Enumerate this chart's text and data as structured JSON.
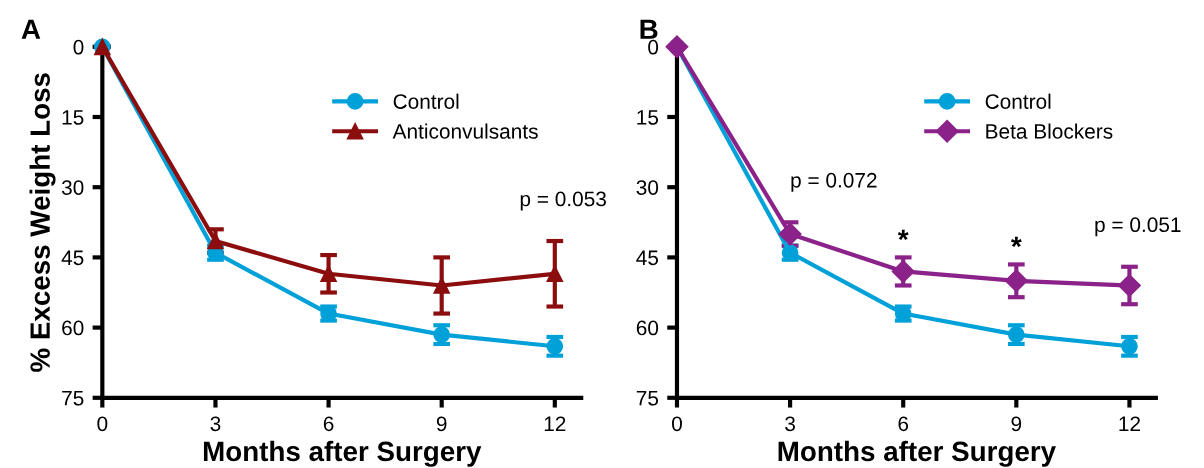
{
  "chart_data": [
    {
      "type": "line",
      "title": "A",
      "xlabel": "Months after Surgery",
      "ylabel": "% Excess Weight Loss",
      "x": [
        0,
        3,
        6,
        9,
        12
      ],
      "xlim": [
        0,
        12.7
      ],
      "xticks": [
        0,
        3,
        6,
        9,
        12
      ],
      "ylim": [
        75,
        0
      ],
      "yticks": [
        0,
        15,
        30,
        45,
        60,
        75
      ],
      "legend": "top right",
      "grid": false,
      "series": [
        {
          "name": "Control",
          "color": "#00a0d8",
          "marker": "circle",
          "values": [
            0,
            44,
            57,
            61.5,
            64
          ],
          "errors": [
            null,
            1.5,
            1.5,
            2,
            2
          ]
        },
        {
          "name": "Anticonvulsants",
          "color": "#8b0d0d",
          "marker": "triangle",
          "values": [
            0,
            41.5,
            48.5,
            51,
            48.5
          ],
          "errors": [
            null,
            2.5,
            4,
            6,
            7
          ]
        }
      ],
      "annotations": [
        {
          "text": "p = 0.053",
          "x": 12,
          "y": 41.5
        }
      ]
    },
    {
      "type": "line",
      "title": "B",
      "xlabel": "Months after Surgery",
      "x": [
        0,
        3,
        6,
        9,
        12
      ],
      "xlim": [
        0,
        12.7
      ],
      "xticks": [
        0,
        3,
        6,
        9,
        12
      ],
      "ylim": [
        75,
        0
      ],
      "yticks": [
        0,
        15,
        30,
        45,
        60,
        75
      ],
      "legend": "top right",
      "grid": false,
      "series": [
        {
          "name": "Control",
          "color": "#00a0d8",
          "marker": "circle",
          "values": [
            0,
            44,
            57,
            61.5,
            64
          ],
          "errors": [
            null,
            1.5,
            1.5,
            2,
            2
          ]
        },
        {
          "name": "Beta Blockers",
          "color": "#8b2289",
          "marker": "diamond",
          "values": [
            0,
            40,
            48,
            50,
            51
          ],
          "errors": [
            null,
            2.5,
            3,
            3.5,
            4
          ]
        }
      ],
      "annotations": [
        {
          "text": "p = 0.072",
          "x": 3,
          "y": 37.5
        },
        {
          "text": "*",
          "x": 6,
          "y": 45
        },
        {
          "text": "*",
          "x": 9,
          "y": 46.5
        },
        {
          "text": "p = 0.051",
          "x": 12,
          "y": 47
        }
      ]
    }
  ]
}
